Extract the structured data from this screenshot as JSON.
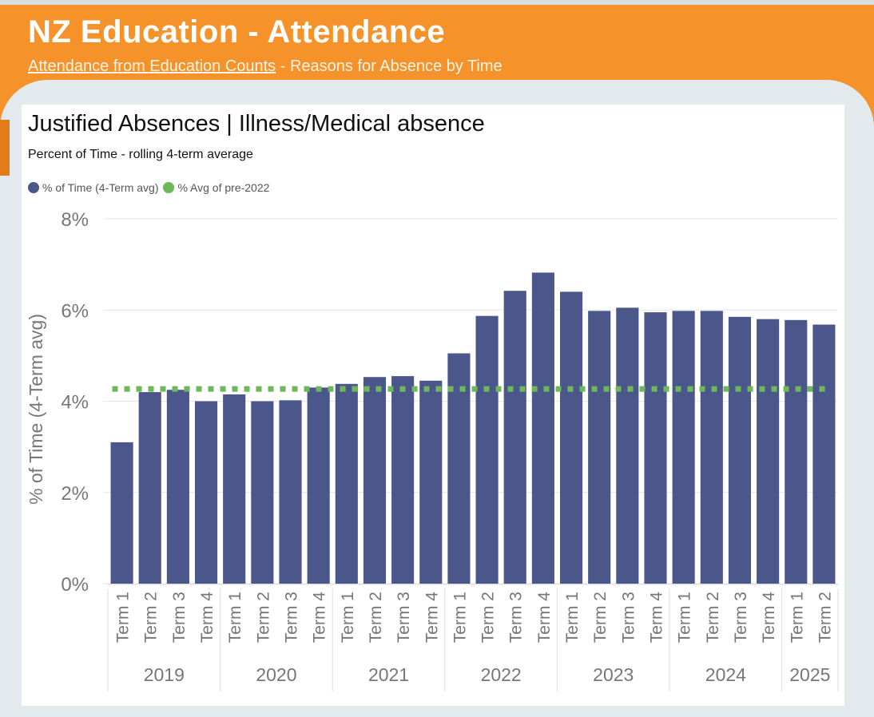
{
  "header": {
    "title": "NZ Education - Attendance",
    "link_text": "Attendance from Education Counts",
    "subtitle_rest": " - Reasons for Absence by Time"
  },
  "colors": {
    "header_bg": "#f5922a",
    "bar": "#4b578a",
    "baseline": "#6cb85a"
  },
  "card": {
    "title": "Justified Absences | Illness/Medical absence",
    "subtitle": "Percent of Time - rolling 4-term average"
  },
  "legend": {
    "series1": "% of Time (4-Term avg)",
    "series2": "% Avg of pre-2022"
  },
  "chart_data": {
    "type": "bar",
    "title": "Justified Absences | Illness/Medical absence",
    "ylabel": "% of Time (4-Term avg)",
    "ylim": [
      0,
      8
    ],
    "yticks": [
      0,
      2,
      4,
      6,
      8
    ],
    "ytick_labels": [
      "0%",
      "2%",
      "4%",
      "6%",
      "8%"
    ],
    "years": [
      "2019",
      "2020",
      "2021",
      "2022",
      "2023",
      "2024",
      "2025"
    ],
    "categories": [
      {
        "year": "2019",
        "term": "Term 1"
      },
      {
        "year": "2019",
        "term": "Term 2"
      },
      {
        "year": "2019",
        "term": "Term 3"
      },
      {
        "year": "2019",
        "term": "Term 4"
      },
      {
        "year": "2020",
        "term": "Term 1"
      },
      {
        "year": "2020",
        "term": "Term 2"
      },
      {
        "year": "2020",
        "term": "Term 3"
      },
      {
        "year": "2020",
        "term": "Term 4"
      },
      {
        "year": "2021",
        "term": "Term 1"
      },
      {
        "year": "2021",
        "term": "Term 2"
      },
      {
        "year": "2021",
        "term": "Term 3"
      },
      {
        "year": "2021",
        "term": "Term 4"
      },
      {
        "year": "2022",
        "term": "Term 1"
      },
      {
        "year": "2022",
        "term": "Term 2"
      },
      {
        "year": "2022",
        "term": "Term 3"
      },
      {
        "year": "2022",
        "term": "Term 4"
      },
      {
        "year": "2023",
        "term": "Term 1"
      },
      {
        "year": "2023",
        "term": "Term 2"
      },
      {
        "year": "2023",
        "term": "Term 3"
      },
      {
        "year": "2023",
        "term": "Term 4"
      },
      {
        "year": "2024",
        "term": "Term 1"
      },
      {
        "year": "2024",
        "term": "Term 2"
      },
      {
        "year": "2024",
        "term": "Term 3"
      },
      {
        "year": "2024",
        "term": "Term 4"
      },
      {
        "year": "2025",
        "term": "Term 1"
      },
      {
        "year": "2025",
        "term": "Term 2"
      }
    ],
    "series": [
      {
        "name": "% of Time (4-Term avg)",
        "values": [
          3.1,
          4.2,
          4.25,
          4.0,
          4.15,
          4.0,
          4.02,
          4.3,
          4.38,
          4.53,
          4.55,
          4.45,
          5.05,
          5.87,
          6.42,
          6.82,
          6.4,
          5.98,
          6.05,
          5.95,
          5.98,
          5.98,
          5.85,
          5.8,
          5.78,
          5.68
        ]
      },
      {
        "name": "% Avg of pre-2022",
        "constant": 4.27
      }
    ]
  }
}
